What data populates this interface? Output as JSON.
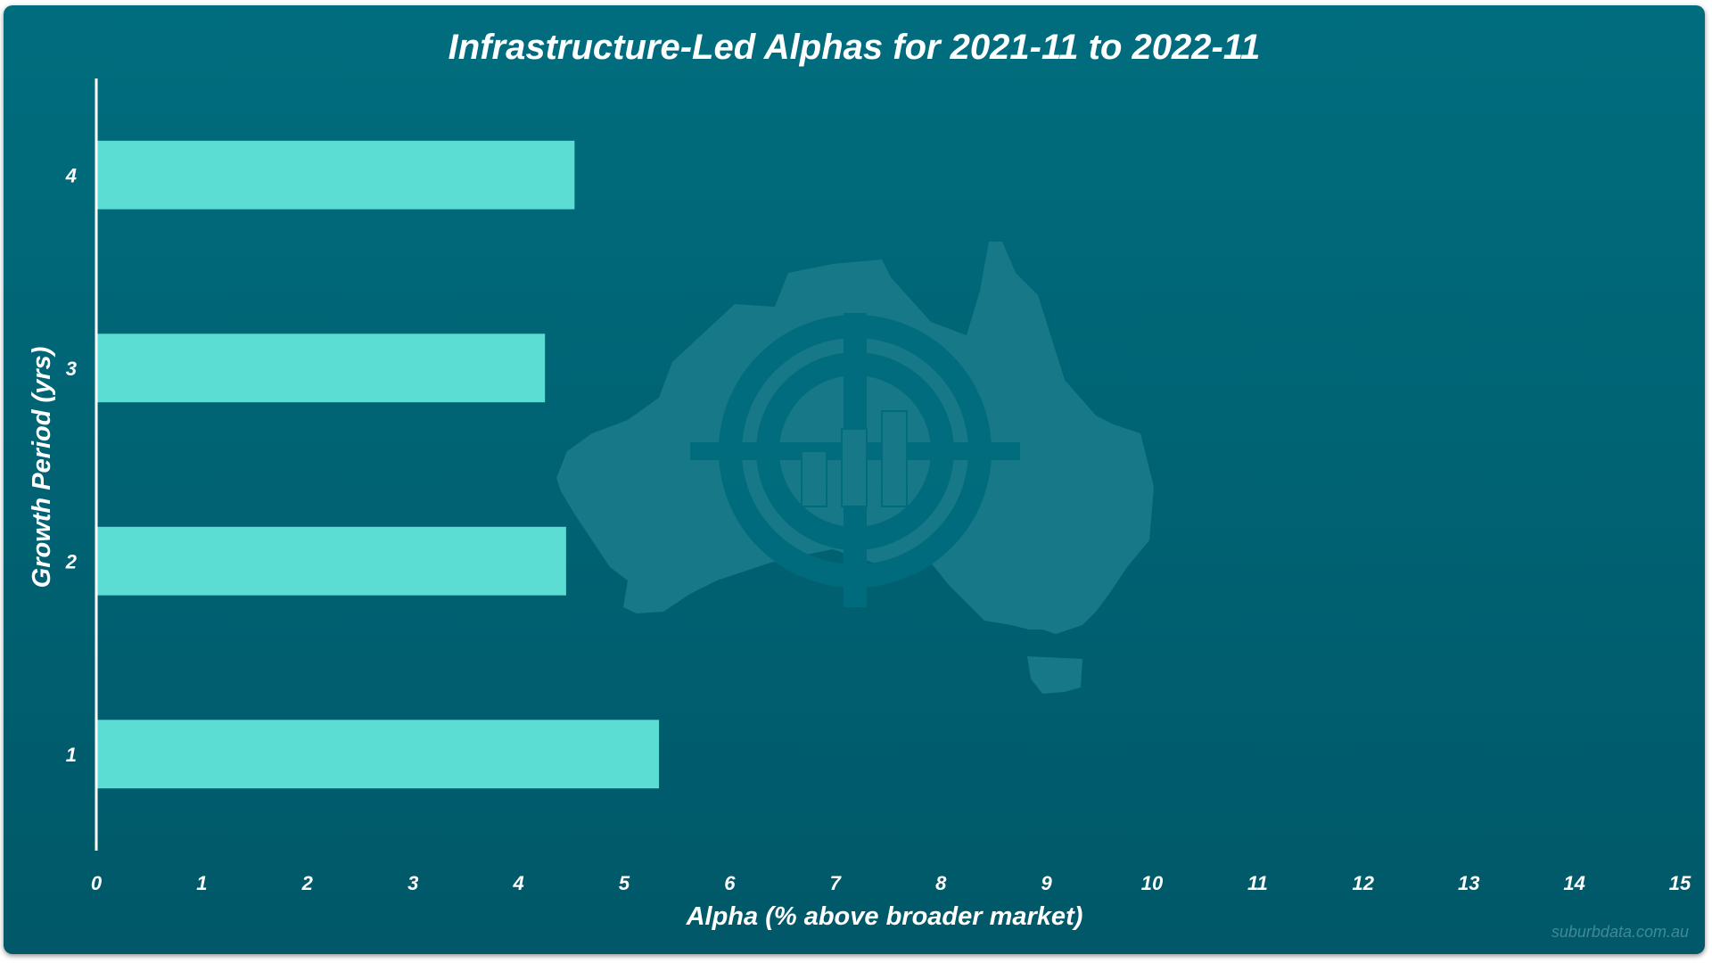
{
  "chart_data": {
    "type": "bar",
    "orientation": "horizontal",
    "title": "Infrastructure-Led Alphas for 2021-11 to 2022-11",
    "xlabel": "Alpha (% above broader market)",
    "ylabel": "Growth Period (yrs)",
    "categories": [
      "1",
      "2",
      "3",
      "4"
    ],
    "values": [
      5.33,
      4.45,
      4.25,
      4.53
    ],
    "xlim": [
      0,
      15
    ],
    "xticks": [
      "0",
      "1",
      "2",
      "3",
      "4",
      "5",
      "6",
      "7",
      "8",
      "9",
      "10",
      "11",
      "12",
      "13",
      "14",
      "15"
    ],
    "grid": false,
    "legend": "none"
  },
  "watermark": {
    "text": "suburbdata.com.au",
    "logo": "australia-map-crosshair-bar-chart-icon"
  },
  "colors": {
    "background_top": "#006d7e",
    "background_bottom": "#005868",
    "bar": "#5cddd3",
    "axis": "#ffffff",
    "logo": "#1a7b8a"
  }
}
